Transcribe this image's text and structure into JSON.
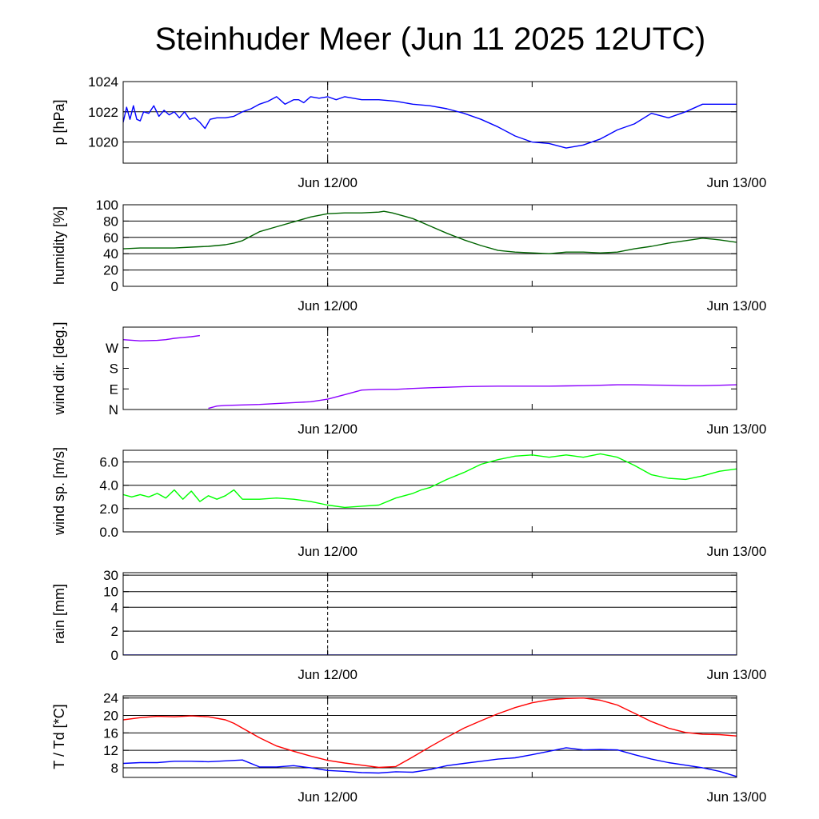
{
  "title": "Steinhuder Meer (Jun 11 2025 12UTC)",
  "x_tick_labels": [
    "Jun 12/00",
    "Jun 13/00"
  ],
  "chart_data": [
    {
      "type": "line",
      "ylabel": "p [hPa]",
      "ylim": [
        1018.6,
        1024.0
      ],
      "yticks": [
        1020,
        1022,
        1024
      ],
      "ytick_labels": [
        "1020",
        "1022",
        "1024"
      ],
      "grid": true,
      "xlim_hours": [
        0,
        36
      ],
      "series": [
        {
          "color": "#0000ff",
          "x": [
            0,
            0.2,
            0.4,
            0.6,
            0.8,
            1.0,
            1.2,
            1.5,
            1.8,
            2.1,
            2.4,
            2.7,
            3.0,
            3.3,
            3.6,
            3.9,
            4.2,
            4.5,
            4.8,
            5.1,
            5.5,
            6,
            6.5,
            7,
            7.5,
            8,
            8.5,
            9,
            9.5,
            10,
            10.3,
            10.6,
            11,
            11.5,
            12,
            12.5,
            13,
            13.5,
            14,
            15,
            16,
            17,
            18,
            19,
            20,
            21,
            22,
            23,
            24,
            25,
            26,
            27,
            28,
            29,
            30,
            31,
            32,
            33,
            34,
            35,
            35.6,
            36
          ],
          "values": [
            1021.3,
            1022.3,
            1021.5,
            1022.4,
            1021.5,
            1021.4,
            1022.0,
            1021.9,
            1022.4,
            1021.7,
            1022.1,
            1021.8,
            1022.0,
            1021.6,
            1022.0,
            1021.5,
            1021.6,
            1021.3,
            1020.9,
            1021.5,
            1021.6,
            1021.6,
            1021.7,
            1022.0,
            1022.2,
            1022.5,
            1022.7,
            1023.0,
            1022.5,
            1022.8,
            1022.8,
            1022.6,
            1023.0,
            1022.9,
            1023.0,
            1022.8,
            1023.0,
            1022.9,
            1022.8,
            1022.8,
            1022.7,
            1022.5,
            1022.4,
            1022.2,
            1021.9,
            1021.5,
            1021.0,
            1020.4,
            1020.0,
            1019.9,
            1019.6,
            1019.8,
            1020.2,
            1020.8,
            1021.2,
            1021.9,
            1021.6,
            1022.0,
            1022.5,
            1022.5,
            1022.5,
            1022.5
          ]
        }
      ]
    },
    {
      "type": "line",
      "ylabel": "humidity [%]",
      "ylim": [
        0,
        100
      ],
      "yticks": [
        0,
        20,
        40,
        60,
        80,
        100
      ],
      "ytick_labels": [
        "0",
        "20",
        "40",
        "60",
        "80",
        "100"
      ],
      "grid": true,
      "xlim_hours": [
        0,
        36
      ],
      "series": [
        {
          "color": "#006400",
          "x": [
            0,
            1,
            2,
            3,
            4,
            5,
            5.5,
            6,
            6.5,
            7,
            8,
            9,
            10,
            11,
            12,
            13,
            14,
            15,
            15.3,
            15.8,
            16.5,
            17,
            18,
            19,
            20,
            21,
            22,
            23,
            24,
            25,
            26,
            27,
            28,
            29,
            30,
            31,
            32,
            33,
            34,
            35,
            36
          ],
          "values": [
            46,
            47,
            47,
            47,
            48,
            49,
            50,
            51,
            53,
            56,
            67,
            73,
            79,
            85,
            89,
            90,
            90,
            91,
            92,
            90,
            86,
            83,
            74,
            65,
            57,
            50,
            44,
            42,
            41,
            40,
            42,
            42,
            41,
            42,
            46,
            49,
            53,
            56,
            59,
            57,
            54
          ]
        }
      ]
    },
    {
      "type": "line",
      "ylabel": "wind dir. [deg.]",
      "ylim": [
        0,
        360
      ],
      "yticks": [
        0,
        90,
        180,
        270
      ],
      "ytick_labels": [
        "N",
        "E",
        "S",
        "W"
      ],
      "grid": false,
      "xlim_hours": [
        0,
        36
      ],
      "series": [
        {
          "color": "#8b00ff",
          "x": [
            0,
            1,
            2,
            2.5,
            3,
            3.5,
            4,
            4.5,
            5,
            5.5,
            6,
            7,
            8,
            9,
            10,
            11,
            12,
            13,
            14,
            15,
            16,
            17,
            18,
            19,
            20,
            21,
            22,
            23,
            24,
            25,
            26,
            27,
            28,
            29,
            30,
            31,
            32,
            33,
            34,
            35,
            36
          ],
          "values": [
            305,
            300,
            302,
            305,
            311,
            315,
            318,
            323,
            5,
            15,
            18,
            20,
            22,
            26,
            30,
            34,
            45,
            65,
            85,
            88,
            88,
            92,
            95,
            97,
            100,
            101,
            102,
            102,
            102,
            102,
            103,
            104,
            106,
            108,
            108,
            107,
            106,
            104,
            104,
            106,
            108
          ]
        }
      ]
    },
    {
      "type": "line",
      "ylabel": "wind sp. [m/s]",
      "ylim": [
        0,
        7
      ],
      "yticks": [
        0,
        2,
        4,
        6
      ],
      "ytick_labels": [
        "0.0",
        "2.0",
        "4.0",
        "6.0"
      ],
      "grid": true,
      "xlim_hours": [
        0,
        36
      ],
      "series": [
        {
          "color": "#00ff00",
          "x": [
            0,
            0.5,
            1,
            1.5,
            2,
            2.5,
            3,
            3.5,
            4,
            4.5,
            5,
            5.5,
            6,
            6.5,
            7,
            8,
            9,
            10,
            11,
            12,
            13,
            14,
            15,
            16,
            17,
            17.5,
            18,
            19,
            20,
            21,
            22,
            23,
            24,
            25,
            26,
            27,
            28,
            29,
            30,
            31,
            32,
            33,
            34,
            35,
            36
          ],
          "values": [
            3.2,
            3.0,
            3.2,
            3.0,
            3.3,
            2.9,
            3.6,
            2.8,
            3.5,
            2.6,
            3.1,
            2.8,
            3.1,
            3.6,
            2.8,
            2.8,
            2.9,
            2.8,
            2.6,
            2.3,
            2.1,
            2.2,
            2.3,
            2.9,
            3.3,
            3.6,
            3.8,
            4.5,
            5.1,
            5.8,
            6.2,
            6.5,
            6.6,
            6.4,
            6.6,
            6.4,
            6.7,
            6.4,
            5.7,
            4.9,
            4.6,
            4.5,
            4.8,
            5.2,
            5.4
          ]
        }
      ]
    },
    {
      "type": "line",
      "ylabel": "rain [mm]",
      "yticks": [
        0,
        2,
        4,
        10,
        30
      ],
      "ytick_labels": [
        "0",
        "2",
        "4",
        "10",
        "30"
      ],
      "grid": true,
      "xlim_hours": [
        0,
        36
      ],
      "series": [
        {
          "color": "#0000ff",
          "x": [
            0,
            36
          ],
          "values": [
            0,
            0
          ]
        }
      ]
    },
    {
      "type": "line",
      "ylabel": "T / Td [*C]",
      "ylim": [
        5.8,
        24.5
      ],
      "yticks": [
        8,
        12,
        16,
        20,
        24
      ],
      "ytick_labels": [
        "8",
        "12",
        "16",
        "20",
        "24"
      ],
      "grid": true,
      "xlim_hours": [
        0,
        36
      ],
      "series": [
        {
          "color": "#ff0000",
          "x": [
            0,
            1,
            2,
            3,
            4,
            5,
            6,
            6.5,
            7,
            8,
            9,
            10,
            11,
            12,
            13,
            14,
            15,
            16,
            17,
            18,
            19,
            20,
            21,
            22,
            23,
            24,
            25,
            26,
            27,
            28,
            29,
            30,
            31,
            32,
            33,
            34,
            35,
            36
          ],
          "values": [
            19.0,
            19.5,
            19.8,
            19.7,
            19.9,
            19.7,
            19.0,
            18.2,
            17.1,
            14.9,
            13.0,
            11.8,
            10.7,
            9.7,
            9.1,
            8.6,
            8.1,
            8.3,
            10.5,
            12.8,
            15.0,
            17.1,
            18.8,
            20.4,
            21.8,
            22.9,
            23.6,
            23.9,
            24.0,
            23.5,
            22.4,
            20.5,
            18.6,
            17.1,
            16.1,
            15.7,
            15.6,
            15.3
          ]
        },
        {
          "color": "#0000ff",
          "x": [
            0,
            1,
            2,
            3,
            4,
            5,
            6,
            7,
            8,
            9,
            10,
            11,
            12,
            13,
            14,
            15,
            16,
            17,
            18,
            19,
            20,
            21,
            22,
            23,
            24,
            25,
            26,
            27,
            28,
            29,
            30,
            31,
            32,
            33,
            34,
            35,
            36
          ],
          "values": [
            9.0,
            9.2,
            9.2,
            9.5,
            9.5,
            9.4,
            9.6,
            9.8,
            8.2,
            8.2,
            8.5,
            8.0,
            7.4,
            7.2,
            6.9,
            6.8,
            7.1,
            7.0,
            7.6,
            8.5,
            9.0,
            9.5,
            10.0,
            10.3,
            11.0,
            11.8,
            12.6,
            12.1,
            12.2,
            12.1,
            11.0,
            10.0,
            9.2,
            8.6,
            8.0,
            7.2,
            6.0
          ]
        }
      ]
    }
  ]
}
